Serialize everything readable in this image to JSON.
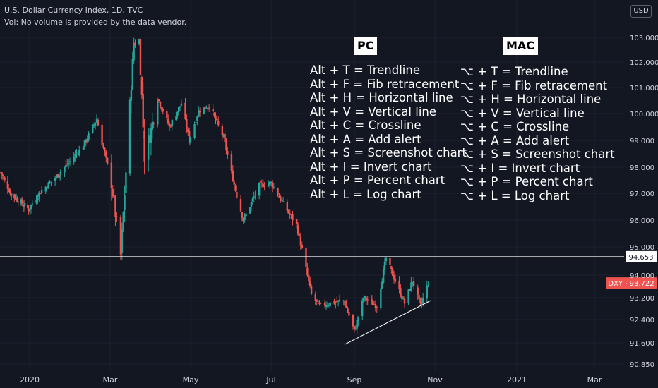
{
  "header": {
    "title": "U.S. Dollar Currency Index, 1D, TVC",
    "volume_note": "Vol: No volume is provided by the data vendor."
  },
  "currency_button": "USD",
  "shortcuts": {
    "pc_heading": "PC",
    "mac_heading": "MAC",
    "pc": [
      "Alt + T = Trendline",
      "Alt + F = Fib retracement",
      "Alt + H = Horizontal line",
      "Alt + V = Vertical line",
      "Alt + C = Crossline",
      "Alt + A = Add alert",
      "Alt + S = Screenshot chart",
      "Alt + I = Invert chart",
      "Alt + P = Percent chart",
      "Alt + L = Log chart"
    ],
    "mac": [
      "⌥ + T = Trendline",
      "⌥ + F = Fib retracement",
      "⌥ + H = Horizontal line",
      "⌥ + V = Vertical line",
      "⌥ + C = Crossline",
      "⌥ + A = Add alert",
      "⌥ + S = Screenshot chart",
      "⌥ + I = Invert chart",
      "⌥ + P = Percent chart",
      "⌥ + L = Log chart"
    ]
  },
  "colors": {
    "background": "#131722",
    "up_candle": "#26a69a",
    "down_candle": "#ef5350",
    "text": "#d1d4dc",
    "line": "#ffffff",
    "price_label_bg": "#ef5350"
  },
  "chart_data": {
    "type": "candlestick",
    "symbol": "DXY",
    "interval": "1D",
    "y_ticks": [
      "103.000",
      "102.000",
      "101.000",
      "100.000",
      "99.000",
      "98.000",
      "97.000",
      "96.000",
      "95.000",
      "94.000",
      "93.200",
      "92.400",
      "91.600",
      "90.850"
    ],
    "x_ticks": [
      "2020",
      "Mar",
      "May",
      "Jul",
      "Sep",
      "Nov",
      "2021",
      "Mar"
    ],
    "ylim": [
      90.6,
      103.5
    ],
    "last_price": 93.722,
    "last_price_label": "DXY · 93.722",
    "horizontal_line": {
      "value": 94.653,
      "label": "94.653"
    },
    "trendline": {
      "from": {
        "date": "2020-08-25",
        "value": 91.55
      },
      "to": {
        "date": "2020-10-29",
        "value": 93.1
      }
    },
    "price_path": [
      [
        "2019-12-02",
        97.8
      ],
      [
        "2019-12-12",
        97.0
      ],
      [
        "2019-12-31",
        96.4
      ],
      [
        "2020-01-08",
        97.0
      ],
      [
        "2020-01-22",
        97.7
      ],
      [
        "2020-02-10",
        98.8
      ],
      [
        "2020-02-20",
        99.8
      ],
      [
        "2020-03-02",
        97.4
      ],
      [
        "2020-03-09",
        94.7
      ],
      [
        "2020-03-12",
        97.0
      ],
      [
        "2020-03-19",
        102.8
      ],
      [
        "2020-03-23",
        102.9
      ],
      [
        "2020-03-27",
        98.4
      ],
      [
        "2020-04-01",
        99.4
      ],
      [
        "2020-04-06",
        100.6
      ],
      [
        "2020-04-15",
        99.5
      ],
      [
        "2020-04-24",
        100.4
      ],
      [
        "2020-04-30",
        99.0
      ],
      [
        "2020-05-07",
        100.1
      ],
      [
        "2020-05-15",
        100.3
      ],
      [
        "2020-05-26",
        99.1
      ],
      [
        "2020-06-05",
        96.9
      ],
      [
        "2020-06-10",
        96.0
      ],
      [
        "2020-06-22",
        97.3
      ],
      [
        "2020-07-01",
        97.4
      ],
      [
        "2020-07-10",
        96.6
      ],
      [
        "2020-07-20",
        95.8
      ],
      [
        "2020-07-31",
        93.3
      ],
      [
        "2020-08-06",
        92.9
      ],
      [
        "2020-08-14",
        93.0
      ],
      [
        "2020-08-24",
        93.1
      ],
      [
        "2020-09-01",
        92.0
      ],
      [
        "2020-09-08",
        93.2
      ],
      [
        "2020-09-18",
        92.9
      ],
      [
        "2020-09-25",
        94.6
      ],
      [
        "2020-10-02",
        93.8
      ],
      [
        "2020-10-09",
        93.0
      ],
      [
        "2020-10-15",
        93.8
      ],
      [
        "2020-10-21",
        92.9
      ],
      [
        "2020-10-27",
        93.72
      ]
    ]
  }
}
